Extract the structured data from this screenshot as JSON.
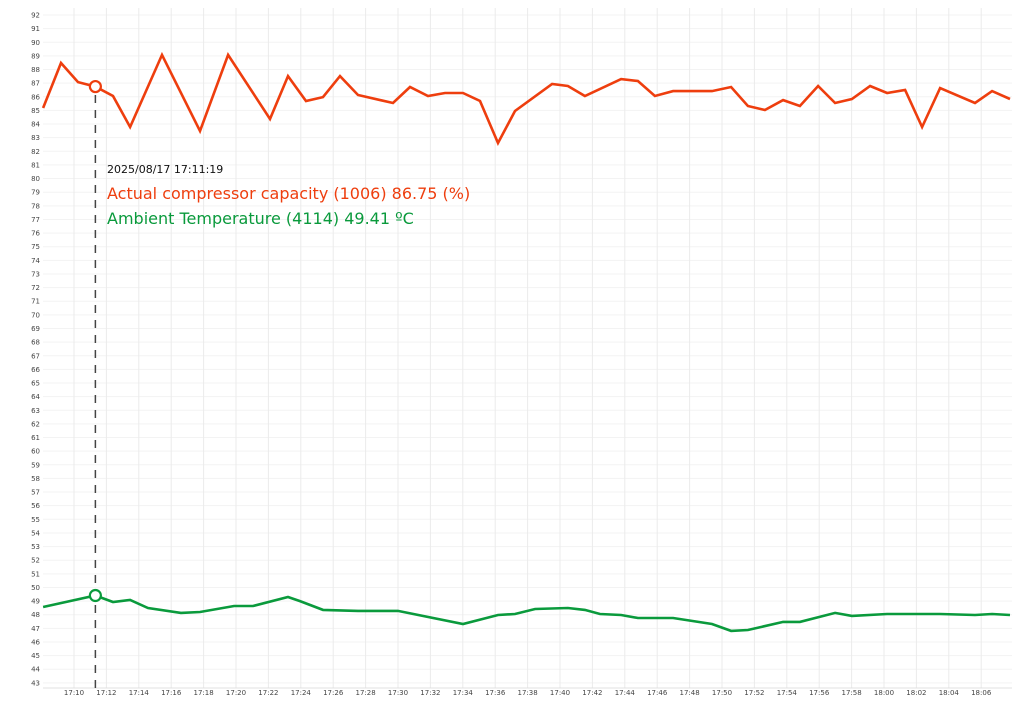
{
  "chart_data": {
    "type": "line",
    "title": "",
    "xlabel": "",
    "ylabel": "",
    "x_unit": "minutes after 17:00",
    "xlim": [
      8.09,
      67.8
    ],
    "ylim": [
      43,
      92
    ],
    "grid": true,
    "x_ticks": [
      "17:10",
      "17:12",
      "17:14",
      "17:16",
      "17:18",
      "17:20",
      "17:22",
      "17:24",
      "17:26",
      "17:28",
      "17:30",
      "17:32",
      "17:34",
      "17:36",
      "17:38",
      "17:40",
      "17:42",
      "17:44",
      "17:46",
      "17:48",
      "17:50",
      "17:52",
      "17:54",
      "17:56",
      "17:58",
      "18:00",
      "18:02",
      "18:04",
      "18:06"
    ],
    "y_ticks": [
      43,
      44,
      45,
      46,
      47,
      48,
      49,
      50,
      51,
      52,
      53,
      54,
      55,
      56,
      57,
      58,
      59,
      60,
      61,
      62,
      63,
      64,
      65,
      66,
      67,
      68,
      69,
      70,
      71,
      72,
      73,
      74,
      75,
      76,
      77,
      78,
      79,
      80,
      81,
      82,
      83,
      84,
      85,
      86,
      87,
      88,
      89,
      90,
      91,
      92
    ],
    "series": [
      {
        "name": "Actual compressor capacity (1006)",
        "unit": "(%)",
        "color": "#ee3e0e",
        "x": [
          8.09,
          9.2,
          10.25,
          11.32,
          12.41,
          13.46,
          15.43,
          17.78,
          19.51,
          22.1,
          23.21,
          24.32,
          25.37,
          26.42,
          27.53,
          29.69,
          30.74,
          31.85,
          32.9,
          34.01,
          35.06,
          36.17,
          37.22,
          39.51,
          40.49,
          41.54,
          43.77,
          44.81,
          45.86,
          46.98,
          49.38,
          50.56,
          51.6,
          52.65,
          53.77,
          54.81,
          55.93,
          56.98,
          58.02,
          59.14,
          60.19,
          61.3,
          62.35,
          63.46,
          65.62,
          66.67,
          67.78
        ],
        "y": [
          85.18,
          88.48,
          87.08,
          86.75,
          86.06,
          83.78,
          89.07,
          83.49,
          89.07,
          84.37,
          87.52,
          85.69,
          85.98,
          87.52,
          86.13,
          85.54,
          86.72,
          86.06,
          86.28,
          86.28,
          85.69,
          82.61,
          84.96,
          86.94,
          86.79,
          86.06,
          87.3,
          87.16,
          86.06,
          86.42,
          86.42,
          86.72,
          85.32,
          85.03,
          85.76,
          85.32,
          86.79,
          85.54,
          85.84,
          86.79,
          86.28,
          86.5,
          83.78,
          86.64,
          85.54,
          86.42,
          85.84
        ]
      },
      {
        "name": "Ambient Temperature (4114)",
        "unit": "ºC",
        "color": "#0a9a3c",
        "x": [
          8.09,
          11.32,
          12.41,
          13.46,
          14.57,
          16.6,
          17.78,
          19.88,
          21.05,
          23.21,
          23.95,
          25.37,
          27.53,
          30.0,
          34.01,
          36.17,
          37.22,
          38.46,
          40.49,
          41.54,
          42.47,
          43.77,
          44.81,
          46.98,
          49.38,
          50.56,
          51.6,
          53.77,
          54.81,
          56.98,
          58.02,
          60.19,
          63.46,
          65.62,
          66.67,
          67.78
        ],
        "y": [
          48.57,
          49.41,
          48.93,
          49.08,
          48.49,
          48.13,
          48.2,
          48.64,
          48.64,
          49.3,
          49.0,
          48.35,
          48.28,
          48.28,
          47.32,
          47.98,
          48.05,
          48.42,
          48.49,
          48.35,
          48.05,
          47.98,
          47.76,
          47.76,
          47.32,
          46.81,
          46.88,
          47.47,
          47.47,
          48.13,
          47.91,
          48.05,
          48.05,
          47.98,
          48.05,
          47.98
        ]
      }
    ],
    "cursor": {
      "x": 11.32,
      "timestamp": "2025/08/17 17:11:19",
      "lines": [
        "Actual compressor capacity (1006) 86.75 (%)",
        "Ambient Temperature (4114) 49.41 ºC"
      ]
    }
  }
}
